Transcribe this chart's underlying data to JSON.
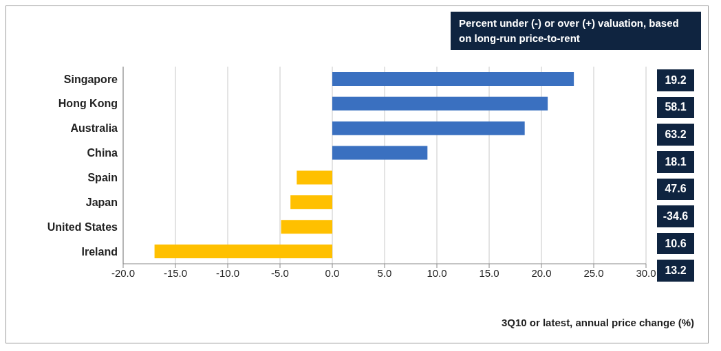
{
  "chart_data": {
    "type": "bar",
    "orientation": "horizontal",
    "xlabel": "3Q10 or latest, annual price change (%)",
    "categories": [
      "Singapore",
      "Hong Kong",
      "Australia",
      "China",
      "Spain",
      "Japan",
      "United States",
      "Ireland"
    ],
    "values": [
      23.1,
      20.6,
      18.4,
      9.1,
      -3.4,
      -4.0,
      -4.9,
      -17.0
    ],
    "colors": [
      "#3a70c0",
      "#3a70c0",
      "#3a70c0",
      "#3a70c0",
      "#ffc000",
      "#ffc000",
      "#ffc000",
      "#ffc000"
    ],
    "xlim": [
      -20,
      30
    ],
    "xticks": [
      {
        "value": -20,
        "label": "-20.0"
      },
      {
        "value": -15,
        "label": "-15.0"
      },
      {
        "value": -10,
        "label": "-10.0"
      },
      {
        "value": -5,
        "label": "-5.0"
      },
      {
        "value": 0,
        "label": "0.0"
      },
      {
        "value": 5,
        "label": "5.0"
      },
      {
        "value": 10,
        "label": "10.0"
      },
      {
        "value": 15,
        "label": "15.0"
      },
      {
        "value": 20,
        "label": "20.0"
      },
      {
        "value": 25,
        "label": "25.0"
      },
      {
        "value": 30,
        "label": "30.0"
      }
    ],
    "grid": "x",
    "annotations": [
      "Percent under (-) or over (+) valuation, based on long-run price-to-rent",
      "19.2",
      "58.1",
      "63.2",
      "18.1",
      "47.6",
      "-34.6",
      "10.6",
      "13.2"
    ]
  }
}
